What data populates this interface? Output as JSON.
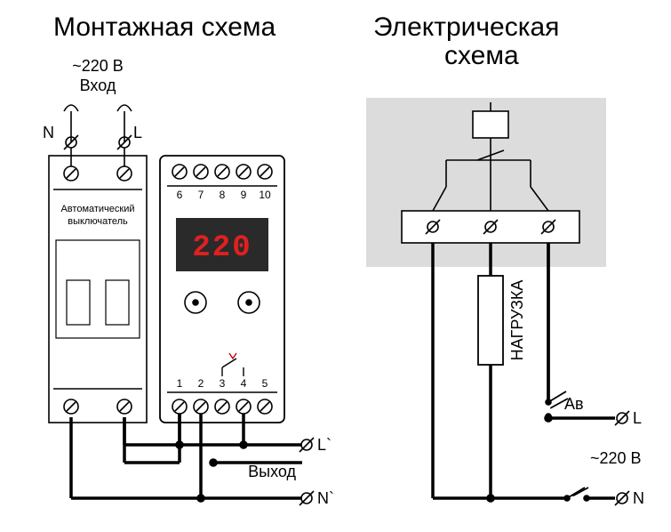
{
  "titles": {
    "left": "Монтажная схема",
    "right1": "Электрическая",
    "right2": "схема"
  },
  "input": {
    "voltage": "~220 В",
    "label": "Вход",
    "N": "N",
    "L": "L"
  },
  "output": {
    "label": "Выход",
    "Lp": "L`",
    "Np": "N`"
  },
  "breaker": {
    "line1": "Автоматический",
    "line2": "выключатель"
  },
  "device": {
    "display": "220",
    "top_terms": [
      "6",
      "7",
      "8",
      "9",
      "10"
    ],
    "bot_terms": [
      "1",
      "2",
      "3",
      "4",
      "5"
    ]
  },
  "electrical": {
    "load": "НАГРУЗКА",
    "Av": "Ав",
    "L": "L",
    "N": "N",
    "voltage": "~220 В"
  },
  "style": {
    "stroke": "#000",
    "bg_gray": "#dcdcdc",
    "display_bg": "#2a2a2a",
    "red": "#e02020",
    "thin": 1.6,
    "thick": 3.5
  }
}
